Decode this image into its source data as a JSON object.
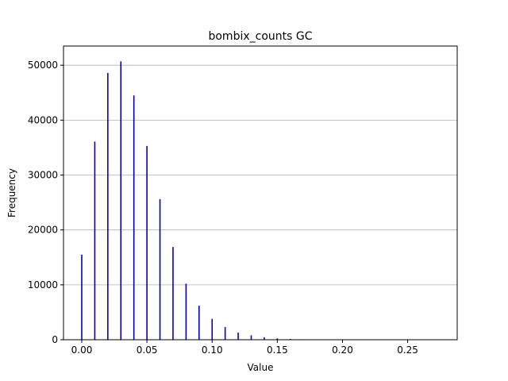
{
  "chart_data": {
    "type": "bar",
    "title": "bombix_counts GC",
    "xlabel": "Value",
    "ylabel": "Frequency",
    "xlim": [
      -0.014,
      0.288
    ],
    "ylim": [
      0,
      53500
    ],
    "grid": {
      "y": true,
      "x": false
    },
    "colors": {
      "bar": "#0000cc",
      "grid": "#b0b0b0"
    },
    "x_ticks": [
      {
        "value": 0.0,
        "label": "0.00"
      },
      {
        "value": 0.05,
        "label": "0.05"
      },
      {
        "value": 0.1,
        "label": "0.10"
      },
      {
        "value": 0.15,
        "label": "0.15"
      },
      {
        "value": 0.2,
        "label": "0.20"
      },
      {
        "value": 0.25,
        "label": "0.25"
      }
    ],
    "y_ticks": [
      {
        "value": 0,
        "label": "0"
      },
      {
        "value": 10000,
        "label": "10000"
      },
      {
        "value": 20000,
        "label": "20000"
      },
      {
        "value": 30000,
        "label": "30000"
      },
      {
        "value": 40000,
        "label": "40000"
      },
      {
        "value": 50000,
        "label": "50000"
      }
    ],
    "series": [
      {
        "x": [
          0.0,
          0.01,
          0.02,
          0.03,
          0.04,
          0.05,
          0.06,
          0.07,
          0.08,
          0.09,
          0.1,
          0.11,
          0.12,
          0.13,
          0.14,
          0.15,
          0.16,
          0.17
        ],
        "values": [
          15500,
          36100,
          48600,
          50700,
          44500,
          35300,
          25600,
          16900,
          10200,
          6200,
          3800,
          2300,
          1300,
          800,
          450,
          250,
          140,
          80
        ]
      }
    ]
  }
}
